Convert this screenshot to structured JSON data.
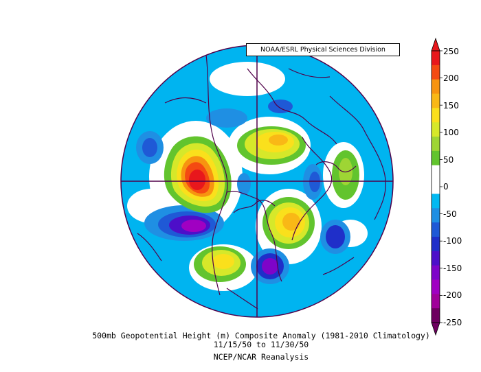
{
  "credit": "NOAA/ESRL Physical Sciences Division",
  "caption": {
    "line1": "500mb Geopotential Height (m) Composite Anomaly (1981-2010 Climatology)",
    "line2": "11/15/50  to 11/30/50",
    "line3": "NCEP/NCAR Reanalysis"
  },
  "colorbar": {
    "labels": [
      "250",
      "200",
      "150",
      "100",
      "50",
      "0",
      "-50",
      "-100",
      "-150",
      "-200",
      "-250"
    ],
    "colors": [
      "#e8171c",
      "#f44a12",
      "#f79410",
      "#f9b816",
      "#fae01c",
      "#d6e82a",
      "#9ed534",
      "#62c42e",
      "#ffffff",
      "#ffffff",
      "#02b9f2",
      "#1f8fe3",
      "#1f59d6",
      "#1f2fc9",
      "#4d0fc9",
      "#7e04c9",
      "#a000c2",
      "#a0009a",
      "#6e0060"
    ]
  },
  "map": {
    "background": "#00b4f0",
    "border": "#50004a",
    "anomalies": [
      {
        "name": "pacific-ridge",
        "sign": "positive",
        "peak": 250
      },
      {
        "name": "greenland-ridge",
        "sign": "positive",
        "peak": 150
      },
      {
        "name": "siberia-ridge",
        "sign": "positive",
        "peak": 200
      },
      {
        "name": "europe-ridge",
        "sign": "positive",
        "peak": 100
      },
      {
        "name": "atlantic-ridge",
        "sign": "positive",
        "peak": 150
      },
      {
        "name": "east-pacific-trough",
        "sign": "negative",
        "peak": -200
      },
      {
        "name": "north-atlantic-trough",
        "sign": "negative",
        "peak": -150
      },
      {
        "name": "arctic-trough",
        "sign": "negative",
        "peak": -100
      },
      {
        "name": "central-asia-trough",
        "sign": "negative",
        "peak": -100
      }
    ]
  }
}
